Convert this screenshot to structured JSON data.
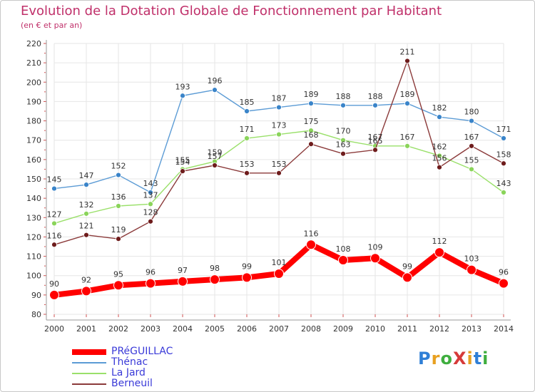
{
  "title": "Evolution de la Dotation Globale de Fonctionnement par Habitant",
  "subtitle": "(en € et par an)",
  "logo": {
    "text": "ProXiti",
    "colors": [
      "#2f7fd6",
      "#e8a020",
      "#3fae3f",
      "#d63a3a",
      "#e8a020",
      "#2f7fd6",
      "#3fae3f"
    ]
  },
  "chart_data": {
    "type": "line",
    "title": "Evolution de la Dotation Globale de Fonctionnement par Habitant",
    "subtitle": "(en € et par an)",
    "xlabel": "",
    "ylabel": "",
    "ylim": [
      80,
      220
    ],
    "y_ticks": [
      80,
      90,
      100,
      110,
      120,
      130,
      140,
      150,
      160,
      170,
      180,
      190,
      200,
      210,
      220
    ],
    "categories": [
      "2000",
      "2001",
      "2002",
      "2003",
      "2004",
      "2005",
      "2006",
      "2007",
      "2008",
      "2009",
      "2010",
      "2011",
      "2012",
      "2013",
      "2014"
    ],
    "grid": true,
    "legend_position": "bottom-left",
    "series": [
      {
        "name": "Thénac",
        "color": "#5b9bd5",
        "point_color": "#3a84c9",
        "values": [
          145,
          147,
          152,
          143,
          193,
          196,
          185,
          187,
          189,
          188,
          188,
          189,
          182,
          180,
          171
        ],
        "labels": [
          "145",
          "147",
          "152",
          "143",
          "193",
          "196",
          "185",
          "187",
          "189",
          "188",
          "188",
          "189",
          "182",
          "180",
          "171"
        ]
      },
      {
        "name": "La Jard",
        "color": "#9ae06a",
        "point_color": "#8ad45a",
        "values": [
          127,
          132,
          136,
          137,
          155,
          159,
          171,
          173,
          175,
          170,
          167,
          167,
          162,
          155,
          143
        ],
        "labels": [
          "127",
          "132",
          "136",
          "137",
          "155",
          "159",
          "171",
          "173",
          "175",
          "170",
          "167",
          "167",
          "162",
          "155",
          "143"
        ]
      },
      {
        "name": "Berneuil",
        "color": "#8b3a3a",
        "point_color": "#6e1c1c",
        "values": [
          116,
          121,
          119,
          128,
          154,
          157,
          153,
          153,
          168,
          163,
          165,
          211,
          156,
          167,
          158
        ],
        "labels": [
          "116",
          "121",
          "119",
          "128",
          "154",
          "157",
          "153",
          "153",
          "168",
          "163",
          "165",
          "211",
          "156",
          "167",
          "158"
        ]
      },
      {
        "name": "PRéGUILLAC",
        "color": "#ff0000",
        "point_color": "#ff0000",
        "thick": true,
        "values": [
          90,
          92,
          95,
          96,
          97,
          98,
          99,
          101,
          116,
          108,
          109,
          99,
          112,
          103,
          96
        ],
        "labels": [
          "90",
          "92",
          "95",
          "96",
          "97",
          "98",
          "99",
          "101",
          "116",
          "108",
          "109",
          "99",
          "112",
          "103",
          "96"
        ]
      }
    ],
    "legend_order": [
      "PRéGUILLAC",
      "Thénac",
      "La Jard",
      "Berneuil"
    ]
  }
}
